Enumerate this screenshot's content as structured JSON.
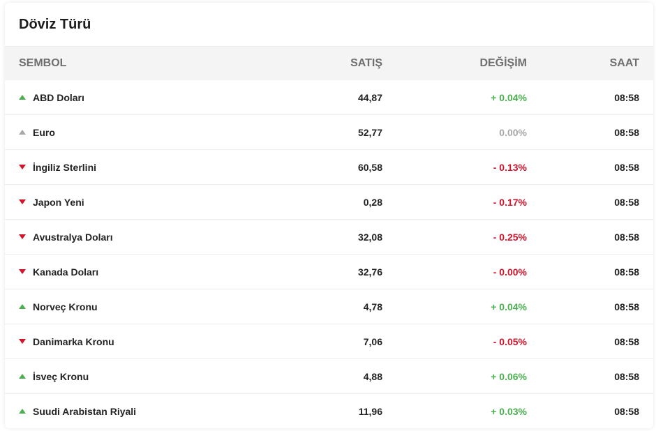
{
  "title": "Döviz Türü",
  "headers": {
    "sembol": "SEMBOL",
    "satis": "SATIŞ",
    "degisim": "DEĞİŞİM",
    "saat": "SAAT"
  },
  "colors": {
    "up": "#4caf50",
    "flat": "#a8a8a8",
    "down": "#d0152c"
  },
  "rows": [
    {
      "name": "ABD Doları",
      "satis": "44,87",
      "degisim": "+ 0.04%",
      "saat": "08:58",
      "trend": "up"
    },
    {
      "name": "Euro",
      "satis": "52,77",
      "degisim": "0.00%",
      "saat": "08:58",
      "trend": "flat"
    },
    {
      "name": "İngiliz Sterlini",
      "satis": "60,58",
      "degisim": "- 0.13%",
      "saat": "08:58",
      "trend": "down"
    },
    {
      "name": "Japon Yeni",
      "satis": "0,28",
      "degisim": "- 0.17%",
      "saat": "08:58",
      "trend": "down"
    },
    {
      "name": "Avustralya Doları",
      "satis": "32,08",
      "degisim": "- 0.25%",
      "saat": "08:58",
      "trend": "down"
    },
    {
      "name": "Kanada Doları",
      "satis": "32,76",
      "degisim": "- 0.00%",
      "saat": "08:58",
      "trend": "down"
    },
    {
      "name": "Norveç Kronu",
      "satis": "4,78",
      "degisim": "+ 0.04%",
      "saat": "08:58",
      "trend": "up"
    },
    {
      "name": "Danimarka Kronu",
      "satis": "7,06",
      "degisim": "- 0.05%",
      "saat": "08:58",
      "trend": "down"
    },
    {
      "name": "İsveç Kronu",
      "satis": "4,88",
      "degisim": "+ 0.06%",
      "saat": "08:58",
      "trend": "up"
    },
    {
      "name": "Suudi Arabistan Riyali",
      "satis": "11,96",
      "degisim": "+ 0.03%",
      "saat": "08:58",
      "trend": "up"
    }
  ]
}
